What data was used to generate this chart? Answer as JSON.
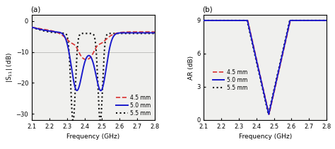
{
  "freq_min": 2.1,
  "freq_max": 2.8,
  "panel_a": {
    "label": "(a)",
    "ylabel": "|S$_{11}$| (dB)",
    "xlabel": "Frequency (GHz)",
    "ylim": [
      -32,
      2
    ],
    "yticks": [
      0,
      -10,
      -20,
      -30
    ],
    "xticks": [
      2.1,
      2.2,
      2.3,
      2.4,
      2.5,
      2.6,
      2.7,
      2.8
    ],
    "hline_y": -10,
    "curves": {
      "4.5mm": {
        "color": "#d93030",
        "linestyle": "dashed",
        "linewidth": 1.2,
        "label": "4.5 mm"
      },
      "5.0mm": {
        "color": "#1a1acc",
        "linestyle": "solid",
        "linewidth": 1.4,
        "label": "5.0 mm"
      },
      "5.5mm": {
        "color": "#111111",
        "linestyle": "dotted",
        "linewidth": 1.5,
        "label": "5.5 mm"
      }
    }
  },
  "panel_b": {
    "label": "(b)",
    "ylabel": "AR (dB)",
    "xlabel": "Frequency (GHz)",
    "ylim": [
      0,
      9.5
    ],
    "yticks": [
      0,
      3,
      6,
      9
    ],
    "xticks": [
      2.1,
      2.2,
      2.3,
      2.4,
      2.5,
      2.6,
      2.7,
      2.8
    ],
    "curves": {
      "4.5mm": {
        "color": "#d93030",
        "linestyle": "dashed",
        "linewidth": 1.2,
        "label": "4.5 mm"
      },
      "5.0mm": {
        "color": "#1a1acc",
        "linestyle": "solid",
        "linewidth": 1.4,
        "label": "5.0 mm"
      },
      "5.5mm": {
        "color": "#111111",
        "linestyle": "dotted",
        "linewidth": 1.5,
        "label": "5.5 mm"
      }
    }
  },
  "background_color": "#ffffff",
  "plot_bg": "#f0f0ee",
  "fontsize": 6.5
}
